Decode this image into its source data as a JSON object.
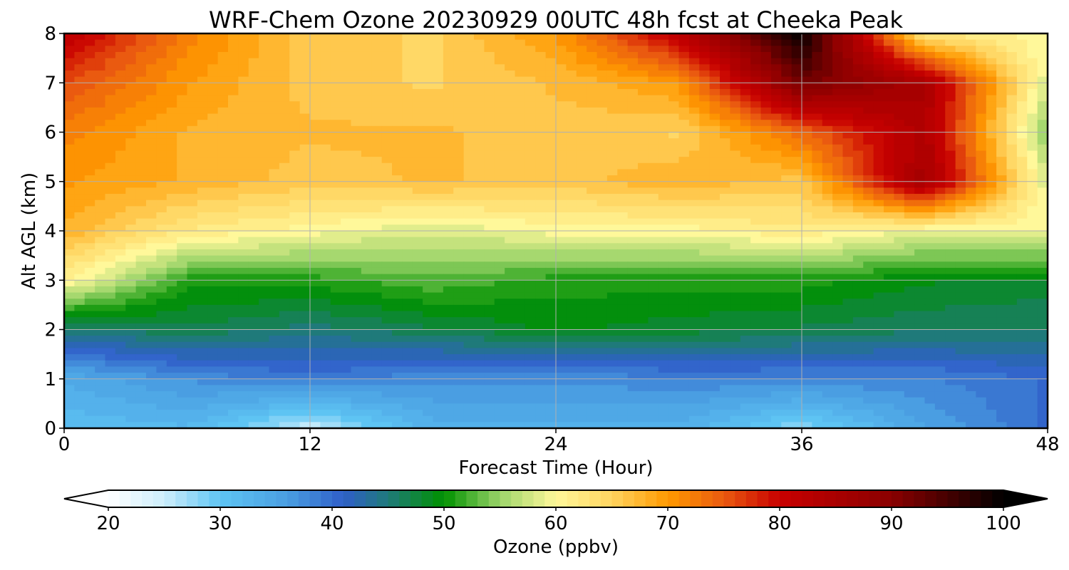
{
  "chart_data": {
    "type": "heatmap",
    "title": "WRF-Chem Ozone  20230929 00UTC 48h fcst at Cheeka Peak",
    "xlabel": "Forecast Time (Hour)",
    "ylabel": "Alt AGL (km)",
    "x_ticks": [
      "0",
      "12",
      "24",
      "36",
      "48"
    ],
    "y_ticks": [
      "0",
      "1",
      "2",
      "3",
      "4",
      "5",
      "6",
      "7",
      "8"
    ],
    "xlim": [
      0,
      48
    ],
    "ylim": [
      0,
      8
    ],
    "grid": true,
    "x": [
      0,
      6,
      12,
      18,
      24,
      30,
      36,
      42,
      48
    ],
    "y": [
      0,
      1,
      2,
      3,
      4,
      5,
      6,
      7,
      8
    ],
    "z_units": "ppbv",
    "z": [
      [
        31,
        32,
        25,
        33,
        33,
        33,
        28,
        35,
        40
      ],
      [
        34,
        37,
        39,
        37,
        37,
        38,
        38,
        38,
        40
      ],
      [
        45,
        47,
        45,
        47,
        49,
        48,
        47,
        46,
        46
      ],
      [
        61,
        51,
        51,
        53,
        51,
        51,
        51,
        49,
        48
      ],
      [
        68,
        62,
        60,
        58,
        60,
        60,
        62,
        59,
        60
      ],
      [
        70,
        68,
        66,
        67,
        66,
        68,
        66,
        86,
        58
      ],
      [
        72,
        68,
        67,
        67,
        66,
        65,
        74,
        84,
        54
      ],
      [
        76,
        70,
        66,
        65,
        67,
        70,
        92,
        85,
        58
      ],
      [
        82,
        72,
        66,
        65,
        70,
        82,
        100,
        62,
        60
      ]
    ],
    "colorbar": {
      "label": "Ozone  (ppbv)",
      "ticks": [
        "20",
        "30",
        "40",
        "50",
        "60",
        "70",
        "80",
        "90",
        "100"
      ],
      "range": [
        20,
        100
      ],
      "extend": "both",
      "stops": [
        {
          "v": 20,
          "c": "#ffffff"
        },
        {
          "v": 25,
          "c": "#cdeefc"
        },
        {
          "v": 30,
          "c": "#5ec4f3"
        },
        {
          "v": 36,
          "c": "#4a9ee2"
        },
        {
          "v": 41,
          "c": "#2f5fc8"
        },
        {
          "v": 45,
          "c": "#1f7a7a"
        },
        {
          "v": 50,
          "c": "#009100"
        },
        {
          "v": 55,
          "c": "#9cd46a"
        },
        {
          "v": 60,
          "c": "#fff89a"
        },
        {
          "v": 65,
          "c": "#ffd460"
        },
        {
          "v": 70,
          "c": "#ff9900"
        },
        {
          "v": 75,
          "c": "#ea5a10"
        },
        {
          "v": 80,
          "c": "#c80000"
        },
        {
          "v": 90,
          "c": "#8a0000"
        },
        {
          "v": 100,
          "c": "#000000"
        }
      ]
    }
  }
}
